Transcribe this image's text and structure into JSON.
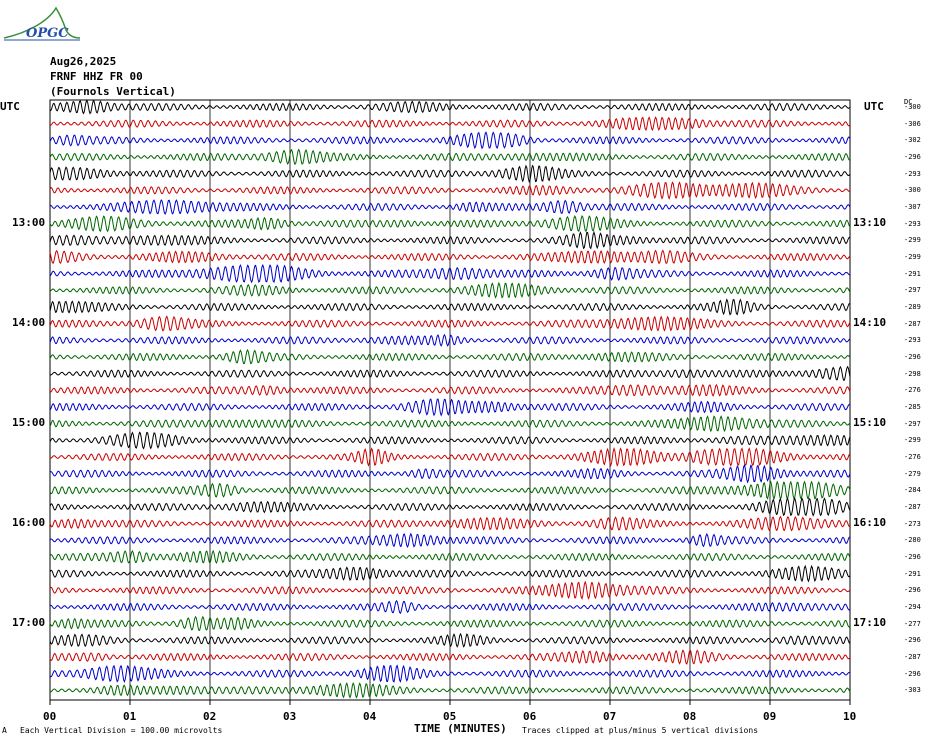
{
  "logo": {
    "text": "OPGC",
    "colors": {
      "wave": "#3a8f3a",
      "text": "#1f4fa8"
    }
  },
  "header": {
    "date": "Aug26,2025",
    "station": "FRNF HHZ FR 00",
    "location": "(Fournols Vertical)"
  },
  "left_axis_title": "UTC",
  "right_axis_title": "UTC",
  "dc_title": "DC",
  "x_axis_title": "TIME (MINUTES)",
  "footer": {
    "left_mark": "A",
    "scale_note": "Each Vertical Division =  100.00 microvolts",
    "clip_note": "Traces clipped at plus/minus 5 vertical divisions"
  },
  "chart_data": {
    "type": "line",
    "title": "",
    "xlabel": "TIME (MINUTES)",
    "ylabel": "UTC",
    "xlim": [
      0,
      10
    ],
    "x_ticks": [
      "00",
      "01",
      "02",
      "03",
      "04",
      "05",
      "06",
      "07",
      "08",
      "09",
      "10"
    ],
    "traces_per_hour": 6,
    "minutes_per_trace": 10,
    "trace_colors": [
      "#000000",
      "#cc0000",
      "#0000cc",
      "#006600"
    ],
    "left_hour_labels": [
      "13:00",
      "14:00",
      "15:00",
      "16:00",
      "17:00"
    ],
    "left_hour_label_rows": [
      7,
      13,
      19,
      25,
      31
    ],
    "right_hour_labels": [
      "13:10",
      "14:10",
      "15:10",
      "16:10",
      "17:10"
    ],
    "right_hour_label_rows": [
      7,
      13,
      19,
      25,
      31
    ],
    "dc_offsets": [
      "-300",
      "-306",
      "-302",
      "-296",
      "-293",
      "-300",
      "-307",
      "-293",
      "-299",
      "-299",
      "-291",
      "-297",
      "-289",
      "-287",
      "-293",
      "-296",
      "-298",
      "-276",
      "-285",
      "-297",
      "-299",
      "-276",
      "-279",
      "-284",
      "-287",
      "-273",
      "-280",
      "-296",
      "-291",
      "-296",
      "-294",
      "-277",
      "-296",
      "-287",
      "-296",
      "-303"
    ],
    "scale_microvolts_per_division": 100.0,
    "clip_divisions": 5
  }
}
